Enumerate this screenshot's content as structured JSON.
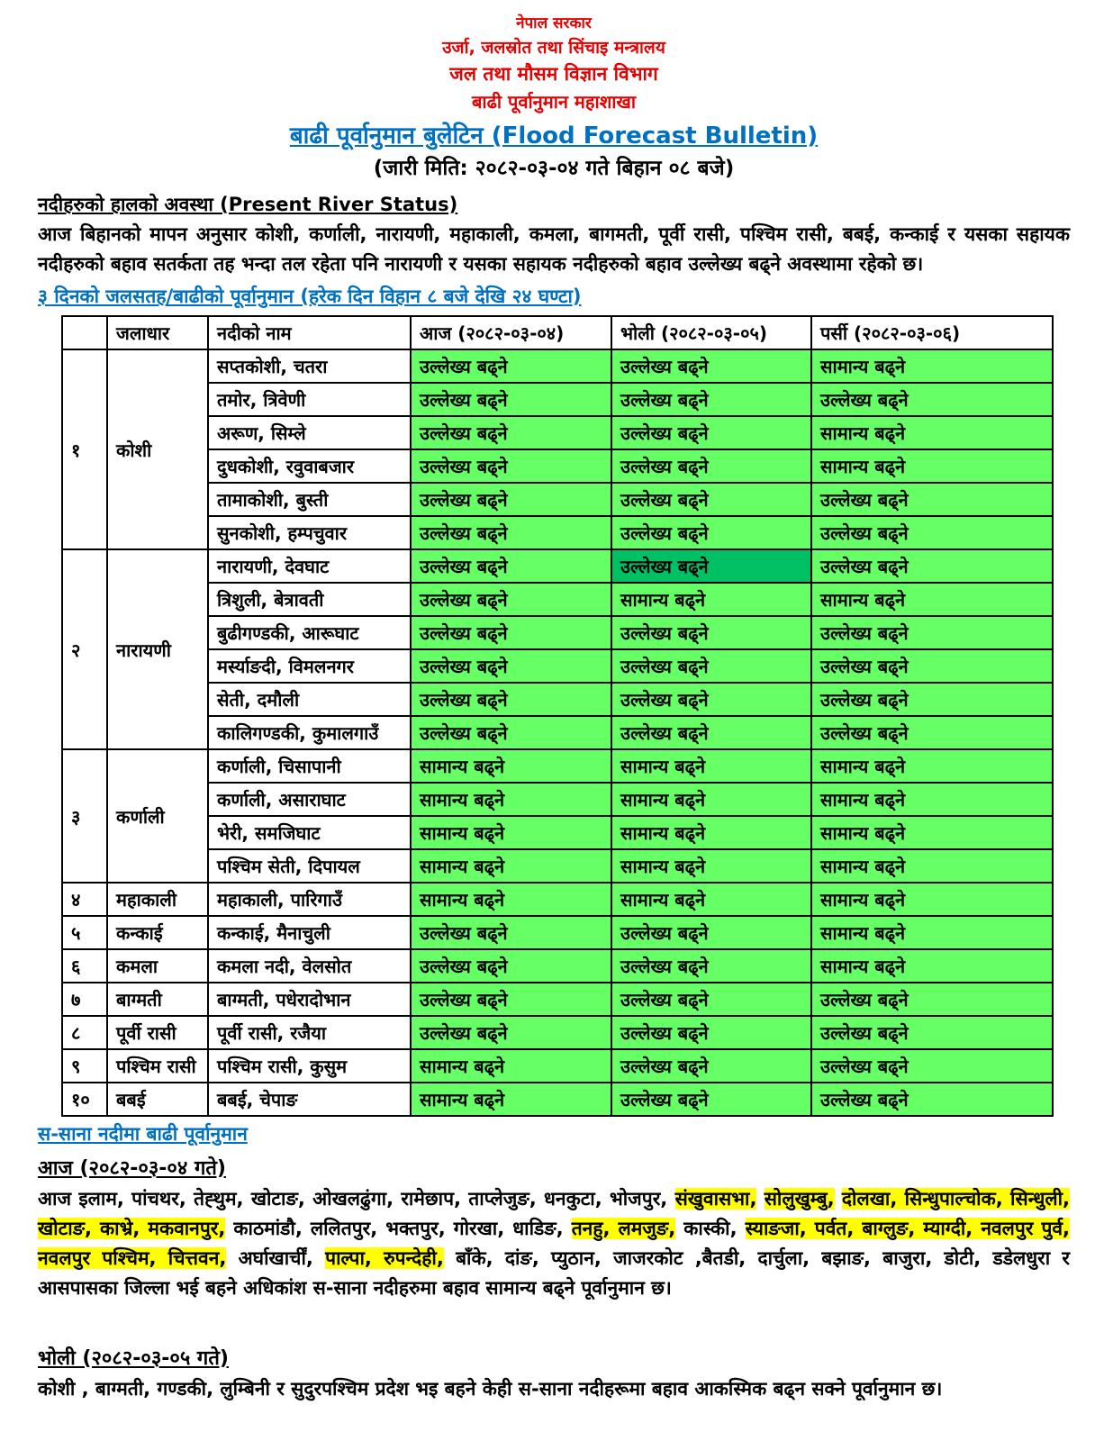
{
  "header": {
    "government": "नेपाल सरकार",
    "ministry": "उर्जा, जलस्रोत तथा सिंचाइ मन्त्रालय",
    "department": "जल तथा मौसम विज्ञान विभाग",
    "division": "बाढी पूर्वानुमान महाशाखा",
    "title": "बाढी पूर्वानुमान बुलेटिन (Flood Forecast Bulletin)",
    "issued": "(जारी मिति: २०८२-०३-०४ गते बिहान ०८ बजे)"
  },
  "present": {
    "heading": "नदीहरुको हालको अवस्था (Present River Status)",
    "paragraph": "आज बिहानको मापन अनुसार कोशी, कर्णाली, नारायणी, महाकाली, कमला, बागमती, पूर्वी रासी, पश्चिम रासी, बबई, कन्काई र यसका सहायक नदीहरुको बहाव सतर्कता तह भन्दा तल रहेता पनि नारायणी र यसका सहायक नदीहरुको बहाव उल्लेख्य बढ्ने अवस्थामा रहेको छ।"
  },
  "forecast_heading": "३ दिनको जलसतह/बाढीको पूर्वानुमान  (हरेक दिन विहान ८ बजे देखि २४ घण्टा)",
  "table": {
    "col_headers": [
      "",
      "जलाधार",
      "नदीको नाम",
      "आज (२०८२-०३-०४)",
      "भोली (२०८२-०३-०५)",
      "पर्सी (२०८२-०३-०६)"
    ],
    "groups": [
      {
        "sn": "१",
        "basin": "कोशी",
        "rivers": [
          {
            "name": "सप्तकोशी, चतरा",
            "cells": [
              "उल्लेख्य बढ्ने",
              "उल्लेख्य बढ्ने",
              "सामान्य बढ्ने"
            ],
            "dark": []
          },
          {
            "name": "तमोर, त्रिवेणी",
            "cells": [
              "उल्लेख्य बढ्ने",
              "उल्लेख्य बढ्ने",
              "उल्लेख्य बढ्ने"
            ],
            "dark": []
          },
          {
            "name": "अरूण, सिम्ले",
            "cells": [
              "उल्लेख्य बढ्ने",
              "उल्लेख्य बढ्ने",
              "सामान्य बढ्ने"
            ],
            "dark": []
          },
          {
            "name": "दुधकोशी, रवुवाबजार",
            "cells": [
              "उल्लेख्य बढ्ने",
              "उल्लेख्य बढ्ने",
              "सामान्य बढ्ने"
            ],
            "dark": []
          },
          {
            "name": "तामाकोशी, बुस्ती",
            "cells": [
              "उल्लेख्य बढ्ने",
              "उल्लेख्य बढ्ने",
              "उल्लेख्य बढ्ने"
            ],
            "dark": []
          },
          {
            "name": "सुनकोशी, हम्पचुवार",
            "cells": [
              "उल्लेख्य बढ्ने",
              "उल्लेख्य बढ्ने",
              "उल्लेख्य बढ्ने"
            ],
            "dark": []
          }
        ]
      },
      {
        "sn": "२",
        "basin": "नारायणी",
        "rivers": [
          {
            "name": "नारायणी, देवघाट",
            "cells": [
              "उल्लेख्य बढ्ने",
              "उल्लेख्य बढ्ने",
              "उल्लेख्य बढ्ने"
            ],
            "dark": [
              1
            ]
          },
          {
            "name": "त्रिशुली, बेत्रावती",
            "cells": [
              "उल्लेख्य बढ्ने",
              "सामान्य बढ्ने",
              "सामान्य बढ्ने"
            ],
            "dark": []
          },
          {
            "name": "बुढीगण्डकी, आरूघाट",
            "cells": [
              "उल्लेख्य बढ्ने",
              "उल्लेख्य बढ्ने",
              "उल्लेख्य बढ्ने"
            ],
            "dark": []
          },
          {
            "name": "मर्स्याङदी, विमलनगर",
            "cells": [
              "उल्लेख्य बढ्ने",
              "उल्लेख्य बढ्ने",
              "उल्लेख्य बढ्ने"
            ],
            "dark": []
          },
          {
            "name": "सेती, दमौली",
            "cells": [
              "उल्लेख्य बढ्ने",
              "उल्लेख्य बढ्ने",
              "उल्लेख्य बढ्ने"
            ],
            "dark": []
          },
          {
            "name": "कालिगण्डकी, कुमालगाउँ",
            "cells": [
              "उल्लेख्य बढ्ने",
              "उल्लेख्य बढ्ने",
              "उल्लेख्य बढ्ने"
            ],
            "dark": []
          }
        ]
      },
      {
        "sn": "३",
        "basin": "कर्णाली",
        "rivers": [
          {
            "name": "कर्णाली, चिसापानी",
            "cells": [
              "सामान्य बढ्ने",
              "सामान्य बढ्ने",
              "सामान्य बढ्ने"
            ],
            "dark": []
          },
          {
            "name": "कर्णाली, असाराघाट",
            "cells": [
              "सामान्य बढ्ने",
              "सामान्य बढ्ने",
              "सामान्य बढ्ने"
            ],
            "dark": []
          },
          {
            "name": "भेरी, समजिघाट",
            "cells": [
              "सामान्य बढ्ने",
              "सामान्य बढ्ने",
              "सामान्य बढ्ने"
            ],
            "dark": []
          },
          {
            "name": "पश्चिम सेती, दिपायल",
            "cells": [
              "सामान्य बढ्ने",
              "सामान्य बढ्ने",
              "सामान्य बढ्ने"
            ],
            "dark": []
          }
        ]
      },
      {
        "sn": "४",
        "basin": "महाकाली",
        "rivers": [
          {
            "name": "महाकाली, पारिगाउँ",
            "cells": [
              "सामान्य बढ्ने",
              "सामान्य बढ्ने",
              "सामान्य बढ्ने"
            ],
            "dark": []
          }
        ]
      },
      {
        "sn": "५",
        "basin": "कन्काई",
        "rivers": [
          {
            "name": "कन्काई, मैनाचुली",
            "cells": [
              "उल्लेख्य बढ्ने",
              "उल्लेख्य बढ्ने",
              "सामान्य बढ्ने"
            ],
            "dark": []
          }
        ]
      },
      {
        "sn": "६",
        "basin": "कमला",
        "rivers": [
          {
            "name": "कमला नदी, वेलसोत",
            "cells": [
              "उल्लेख्य बढ्ने",
              "उल्लेख्य बढ्ने",
              "सामान्य बढ्ने"
            ],
            "dark": []
          }
        ]
      },
      {
        "sn": "७",
        "basin": "बाग्मती",
        "rivers": [
          {
            "name": "बाग्मती, पधेरादोभान",
            "cells": [
              "उल्लेख्य बढ्ने",
              "उल्लेख्य बढ्ने",
              "उल्लेख्य बढ्ने"
            ],
            "dark": []
          }
        ]
      },
      {
        "sn": "८",
        "basin": "पूर्वी रासी",
        "rivers": [
          {
            "name": "पूर्वी रासी, रजैया",
            "cells": [
              "उल्लेख्य बढ्ने",
              "उल्लेख्य बढ्ने",
              "उल्लेख्य बढ्ने"
            ],
            "dark": []
          }
        ]
      },
      {
        "sn": "९",
        "basin": "पश्चिम रासी",
        "rivers": [
          {
            "name": "पश्चिम रासी, कुसुम",
            "cells": [
              "सामान्य बढ्ने",
              "उल्लेख्य बढ्ने",
              "उल्लेख्य बढ्ने"
            ],
            "dark": []
          }
        ]
      },
      {
        "sn": "१०",
        "basin": "बबई",
        "rivers": [
          {
            "name": "बबई, चेपाङ",
            "cells": [
              "सामान्य बढ्ने",
              "उल्लेख्य बढ्ने",
              "उल्लेख्य बढ्ने"
            ],
            "dark": []
          }
        ]
      }
    ]
  },
  "small_rivers": {
    "heading": "स-साना नदीमा बाढी पूर्वानुमान",
    "today_heading": "आज (२०८२-०३-०४ गते)",
    "today_segments": [
      {
        "text": "आज इलाम, पांचथर, तेह्थुम, खोटाङ, ओखलढुंगा, रामेछाप, ताप्लेजुङ, धनकुटा, भोजपुर, ",
        "hl": false
      },
      {
        "text": "संखुवासभा,",
        "hl": true
      },
      {
        "text": " ",
        "hl": false
      },
      {
        "text": "सोलुखुम्बु,",
        "hl": true
      },
      {
        "text": " ",
        "hl": false
      },
      {
        "text": "दोलखा, सिन्धुपाल्चोक, सिन्धुली, खोटाङ, काभ्रे, मकवानपुर,",
        "hl": true
      },
      {
        "text": " काठमांडौ, ललितपुर, भक्तपुर, गोरखा, धाडिङ, ",
        "hl": false
      },
      {
        "text": "तनहु, लमजुङ,",
        "hl": true
      },
      {
        "text": " कास्की, ",
        "hl": false
      },
      {
        "text": "स्याङजा, पर्वत, बाग्लुङ, म्याग्दी, नवलपुर पुर्व, नवलपुर पश्चिम,  चित्तवन,",
        "hl": true
      },
      {
        "text": " अर्घाखार्चीं, ",
        "hl": false
      },
      {
        "text": "पाल्पा, रुपन्देही,",
        "hl": true
      },
      {
        "text": " बाँके, दांङ, प्युठान, जाजरकोट ,बैतडी, दार्चुला, बझाङ, बाजुरा, डोटी, डडेलधुरा र आसपासका जिल्ला भई बहने अधिकांश स-साना नदीहरुमा बहाव सामान्य बढ्ने पूर्वानुमान छ।",
        "hl": false
      }
    ],
    "tomorrow_heading": "भोली (२०८२-०३-०५ गते)",
    "tomorrow_text": "कोशी , बाग्मती, गण्डकी, लुम्बिनी  र सुदुरपश्चिम प्रदेश भइ बहने केही स-साना नदीहरूमा बहाव आकस्मिक बढ्न सक्ने पूर्वानुमान छ।"
  },
  "colors": {
    "accent_red": "#E60000",
    "accent_blue": "#0070C0",
    "cell_green": "#66FF66",
    "cell_dark_green": "#00C064",
    "highlight_yellow": "#FFFF00"
  }
}
